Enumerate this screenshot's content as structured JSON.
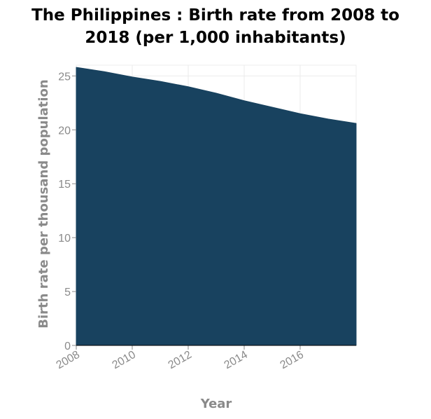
{
  "chart_data": {
    "type": "area",
    "title": "The Philippines : Birth rate from 2008 to 2018 (per 1,000 inhabitants)",
    "title_lines": [
      "The Philippines : Birth rate from 2008 to",
      "2018 (per 1,000 inhabitants)"
    ],
    "xlabel": "Year",
    "ylabel": "Birth rate per thousand population",
    "x": [
      2008,
      2009,
      2010,
      2011,
      2012,
      2013,
      2014,
      2015,
      2016,
      2017,
      2018
    ],
    "values": [
      25.8,
      25.4,
      24.9,
      24.5,
      24.0,
      23.4,
      22.7,
      22.1,
      21.5,
      21.0,
      20.6
    ],
    "xlim": [
      2008,
      2018
    ],
    "ylim": [
      0,
      26
    ],
    "xticks": [
      2008,
      2010,
      2012,
      2014,
      2016
    ],
    "yticks": [
      0,
      5,
      10,
      15,
      20,
      25
    ],
    "grid": true,
    "fill_color": "#18425f"
  }
}
